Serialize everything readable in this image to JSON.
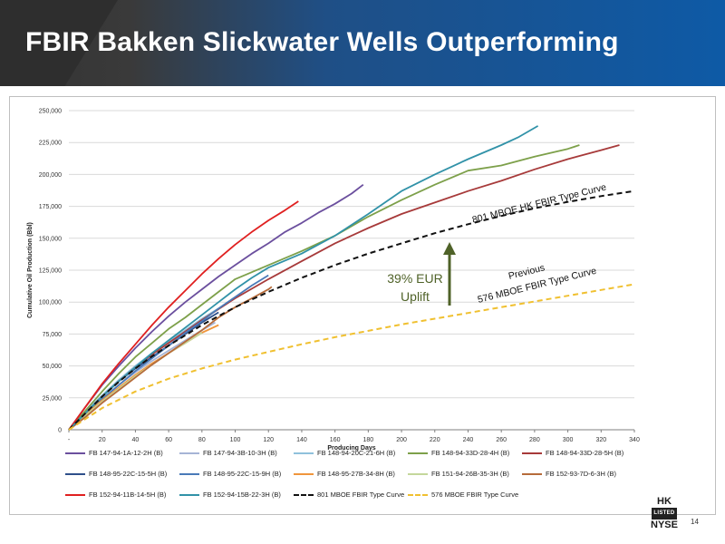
{
  "slide": {
    "title": "FBIR Bakken Slickwater Wells Outperforming",
    "page_number": "14",
    "logo_top": "HK",
    "logo_box": "LISTED",
    "logo_bottom": "NYSE"
  },
  "annotations": {
    "uplift_line1": "39% EUR",
    "uplift_line2": "Uplift",
    "type_curve_801": "801 MBOE HK FBIR Type Curve",
    "previous_line1": "Previous",
    "previous_line2": "576 MBOE FBIR Type Curve"
  },
  "colors": {
    "header_blue": "#0e5aa6",
    "uplift_arrow": "#4f6228"
  },
  "chart_data": {
    "type": "line",
    "title": "",
    "xlabel": "Producing Days",
    "ylabel": "Cumulative Oil Production (Bbl)",
    "xlim": [
      0,
      340
    ],
    "ylim": [
      0,
      250000
    ],
    "x_ticks": [
      0,
      20,
      40,
      60,
      80,
      100,
      120,
      140,
      160,
      180,
      200,
      220,
      240,
      260,
      280,
      300,
      320,
      340
    ],
    "x_tick_labels": [
      "-",
      "20",
      "40",
      "60",
      "80",
      "100",
      "120",
      "140",
      "160",
      "180",
      "200",
      "220",
      "240",
      "260",
      "280",
      "300",
      "320",
      "340"
    ],
    "y_ticks": [
      0,
      25000,
      50000,
      75000,
      100000,
      125000,
      150000,
      175000,
      200000,
      225000,
      250000
    ],
    "y_tick_labels": [
      "0",
      "25,000",
      "50,000",
      "75,000",
      "100,000",
      "125,000",
      "150,000",
      "175,000",
      "200,000",
      "225,000",
      "250,000"
    ],
    "grid": "horizontal",
    "legend_position": "bottom",
    "series": [
      {
        "name": "FB 147-94-1A-12-2H (B)",
        "color": "#6b4f9e",
        "style": "solid",
        "points": [
          [
            0,
            0
          ],
          [
            10,
            18000
          ],
          [
            20,
            35000
          ],
          [
            30,
            50000
          ],
          [
            40,
            64000
          ],
          [
            50,
            77000
          ],
          [
            60,
            89000
          ],
          [
            70,
            100000
          ],
          [
            80,
            110000
          ],
          [
            90,
            120000
          ],
          [
            100,
            129000
          ],
          [
            110,
            138000
          ],
          [
            120,
            146000
          ],
          [
            130,
            155000
          ],
          [
            140,
            162000
          ],
          [
            150,
            170000
          ],
          [
            160,
            177000
          ],
          [
            170,
            185000
          ],
          [
            177,
            192000
          ]
        ]
      },
      {
        "name": "FB 147-94-3B-10-3H (B)",
        "color": "#a6b4d6",
        "style": "solid",
        "points": [
          [
            0,
            0
          ],
          [
            10,
            12000
          ],
          [
            20,
            24000
          ],
          [
            30,
            35000
          ],
          [
            40,
            45000
          ],
          [
            50,
            54000
          ],
          [
            60,
            62000
          ],
          [
            70,
            70000
          ],
          [
            80,
            78000
          ],
          [
            88,
            84000
          ]
        ]
      },
      {
        "name": "FB 148-94-20C-21-6H (B)",
        "color": "#8fc1dc",
        "style": "solid",
        "points": [
          [
            0,
            0
          ],
          [
            10,
            14000
          ],
          [
            20,
            27000
          ],
          [
            30,
            39000
          ],
          [
            40,
            50000
          ],
          [
            50,
            60000
          ],
          [
            60,
            69000
          ],
          [
            70,
            78000
          ],
          [
            80,
            87000
          ],
          [
            90,
            95000
          ]
        ]
      },
      {
        "name": "FB 148-94-33D-28-4H (B)",
        "color": "#7da04a",
        "style": "solid",
        "points": [
          [
            0,
            0
          ],
          [
            10,
            15000
          ],
          [
            20,
            30000
          ],
          [
            30,
            44000
          ],
          [
            40,
            57000
          ],
          [
            50,
            68000
          ],
          [
            60,
            79000
          ],
          [
            70,
            88000
          ],
          [
            80,
            98000
          ],
          [
            90,
            108000
          ],
          [
            100,
            118000
          ],
          [
            120,
            129000
          ],
          [
            140,
            140000
          ],
          [
            160,
            152000
          ],
          [
            180,
            167000
          ],
          [
            200,
            180000
          ],
          [
            220,
            192000
          ],
          [
            240,
            203000
          ],
          [
            260,
            207000
          ],
          [
            280,
            214000
          ],
          [
            300,
            220000
          ],
          [
            307,
            223000
          ]
        ]
      },
      {
        "name": "FB 148-94-33D-28-5H (B)",
        "color": "#a73a3a",
        "style": "solid",
        "points": [
          [
            0,
            0
          ],
          [
            10,
            13000
          ],
          [
            20,
            26000
          ],
          [
            30,
            38000
          ],
          [
            40,
            49000
          ],
          [
            50,
            59000
          ],
          [
            60,
            68000
          ],
          [
            70,
            77000
          ],
          [
            80,
            86000
          ],
          [
            100,
            103000
          ],
          [
            120,
            118000
          ],
          [
            140,
            132000
          ],
          [
            160,
            146000
          ],
          [
            180,
            158000
          ],
          [
            200,
            169000
          ],
          [
            220,
            178000
          ],
          [
            240,
            187000
          ],
          [
            260,
            195000
          ],
          [
            280,
            204000
          ],
          [
            300,
            212000
          ],
          [
            320,
            219000
          ],
          [
            331,
            223000
          ]
        ]
      },
      {
        "name": "FB 148-95-22C-15-5H (B)",
        "color": "#2f4f8a",
        "style": "solid",
        "points": [
          [
            0,
            0
          ],
          [
            10,
            13000
          ],
          [
            20,
            26000
          ],
          [
            30,
            38000
          ],
          [
            40,
            48000
          ],
          [
            50,
            57000
          ],
          [
            60,
            66000
          ],
          [
            70,
            75000
          ],
          [
            80,
            84000
          ],
          [
            90,
            92000
          ]
        ]
      },
      {
        "name": "FB 148-95-22C-15-9H (B)",
        "color": "#4a7ab8",
        "style": "solid",
        "points": [
          [
            0,
            0
          ],
          [
            10,
            12000
          ],
          [
            20,
            24000
          ],
          [
            30,
            35000
          ],
          [
            40,
            46000
          ],
          [
            50,
            56000
          ],
          [
            60,
            66000
          ],
          [
            70,
            76000
          ],
          [
            80,
            85000
          ],
          [
            90,
            95000
          ],
          [
            100,
            104000
          ],
          [
            110,
            113000
          ],
          [
            120,
            121000
          ]
        ]
      },
      {
        "name": "FB 148-95-27B-34-8H (B)",
        "color": "#f0963c",
        "style": "solid",
        "points": [
          [
            0,
            0
          ],
          [
            10,
            12000
          ],
          [
            20,
            23000
          ],
          [
            30,
            33000
          ],
          [
            40,
            43000
          ],
          [
            50,
            52000
          ],
          [
            60,
            60000
          ],
          [
            70,
            68000
          ],
          [
            80,
            76000
          ],
          [
            90,
            82000
          ]
        ]
      },
      {
        "name": "FB 151-94-26B-35-3H (B)",
        "color": "#c4d79b",
        "style": "solid",
        "points": [
          [
            0,
            0
          ],
          [
            10,
            11000
          ],
          [
            20,
            22000
          ],
          [
            30,
            32000
          ],
          [
            40,
            42000
          ],
          [
            50,
            51000
          ],
          [
            60,
            60000
          ],
          [
            70,
            68000
          ],
          [
            80,
            76000
          ]
        ]
      },
      {
        "name": "FB 152-93-7D-6-3H (B)",
        "color": "#b66b3a",
        "style": "solid",
        "points": [
          [
            0,
            0
          ],
          [
            10,
            10000
          ],
          [
            20,
            21000
          ],
          [
            30,
            31000
          ],
          [
            40,
            41000
          ],
          [
            50,
            51000
          ],
          [
            60,
            60000
          ],
          [
            70,
            69000
          ],
          [
            80,
            78000
          ],
          [
            90,
            88000
          ],
          [
            100,
            96000
          ],
          [
            110,
            103000
          ],
          [
            120,
            110000
          ],
          [
            122,
            112000
          ]
        ]
      },
      {
        "name": "FB 152-94-11B-14-5H (B)",
        "color": "#e02020",
        "style": "solid",
        "points": [
          [
            0,
            0
          ],
          [
            10,
            18000
          ],
          [
            20,
            36000
          ],
          [
            30,
            52000
          ],
          [
            40,
            67000
          ],
          [
            50,
            82000
          ],
          [
            60,
            96000
          ],
          [
            70,
            109000
          ],
          [
            80,
            122000
          ],
          [
            90,
            134000
          ],
          [
            100,
            145000
          ],
          [
            110,
            155000
          ],
          [
            120,
            164000
          ],
          [
            130,
            172000
          ],
          [
            138,
            179000
          ]
        ]
      },
      {
        "name": "FB 152-94-15B-22-3H (B)",
        "color": "#3192a8",
        "style": "solid",
        "points": [
          [
            0,
            0
          ],
          [
            10,
            13000
          ],
          [
            20,
            26000
          ],
          [
            30,
            38000
          ],
          [
            40,
            49000
          ],
          [
            50,
            60000
          ],
          [
            60,
            70000
          ],
          [
            70,
            80000
          ],
          [
            80,
            90000
          ],
          [
            90,
            100000
          ],
          [
            100,
            110000
          ],
          [
            110,
            119000
          ],
          [
            120,
            127000
          ],
          [
            140,
            138000
          ],
          [
            160,
            152000
          ],
          [
            180,
            169000
          ],
          [
            200,
            187000
          ],
          [
            220,
            200000
          ],
          [
            240,
            212000
          ],
          [
            260,
            223000
          ],
          [
            270,
            229000
          ],
          [
            282,
            238000
          ]
        ]
      },
      {
        "name": "801 MBOE FBIR Type Curve",
        "color": "#111111",
        "style": "dashed",
        "points": [
          [
            0,
            0
          ],
          [
            10,
            13000
          ],
          [
            20,
            26000
          ],
          [
            30,
            37500
          ],
          [
            40,
            48000
          ],
          [
            50,
            57500
          ],
          [
            60,
            66000
          ],
          [
            70,
            74000
          ],
          [
            80,
            82000
          ],
          [
            100,
            96000
          ],
          [
            120,
            108000
          ],
          [
            140,
            119000
          ],
          [
            160,
            129000
          ],
          [
            180,
            138000
          ],
          [
            200,
            146000
          ],
          [
            220,
            154000
          ],
          [
            240,
            161000
          ],
          [
            260,
            167500
          ],
          [
            280,
            173500
          ],
          [
            300,
            178500
          ],
          [
            320,
            183000
          ],
          [
            340,
            187000
          ]
        ]
      },
      {
        "name": "576 MBOE FBIR Type Curve",
        "color": "#f0c030",
        "style": "dashed",
        "points": [
          [
            0,
            0
          ],
          [
            20,
            17000
          ],
          [
            40,
            30000
          ],
          [
            60,
            40000
          ],
          [
            80,
            48000
          ],
          [
            100,
            55000
          ],
          [
            120,
            61000
          ],
          [
            140,
            67000
          ],
          [
            160,
            72500
          ],
          [
            180,
            77500
          ],
          [
            200,
            82500
          ],
          [
            220,
            87000
          ],
          [
            240,
            91500
          ],
          [
            260,
            96000
          ],
          [
            280,
            100500
          ],
          [
            300,
            105000
          ],
          [
            320,
            109500
          ],
          [
            340,
            114000
          ]
        ]
      }
    ]
  }
}
